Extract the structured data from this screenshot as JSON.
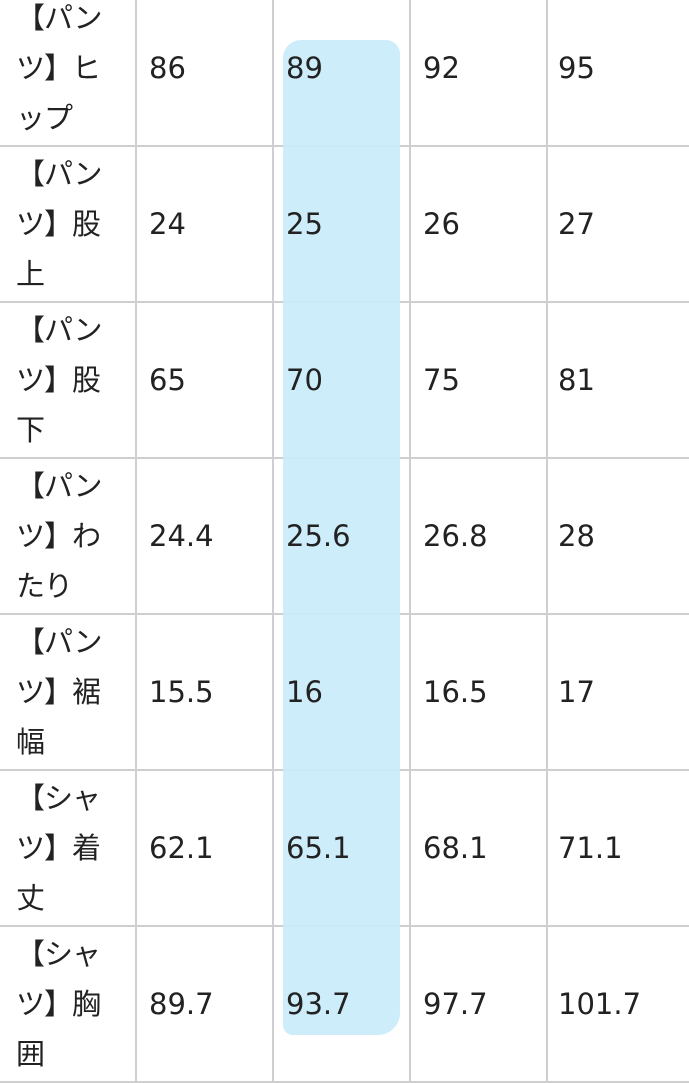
{
  "highlight_color": "#c9ebfb",
  "rows": [
    {
      "label": "【パンツ】ヒップ",
      "values": [
        "86",
        "89",
        "92",
        "95"
      ]
    },
    {
      "label": "【パンツ】股上",
      "values": [
        "24",
        "25",
        "26",
        "27"
      ]
    },
    {
      "label": "【パンツ】股下",
      "values": [
        "65",
        "70",
        "75",
        "81"
      ]
    },
    {
      "label": "【パンツ】わたり",
      "values": [
        "24.4",
        "25.6",
        "26.8",
        "28"
      ]
    },
    {
      "label": "【パンツ】裾幅",
      "values": [
        "15.5",
        "16",
        "16.5",
        "17"
      ]
    },
    {
      "label": "【シャツ】着丈",
      "values": [
        "62.1",
        "65.1",
        "68.1",
        "71.1"
      ]
    },
    {
      "label": "【シャツ】胸囲",
      "values": [
        "89.7",
        "93.7",
        "97.7",
        "101.7"
      ]
    }
  ]
}
